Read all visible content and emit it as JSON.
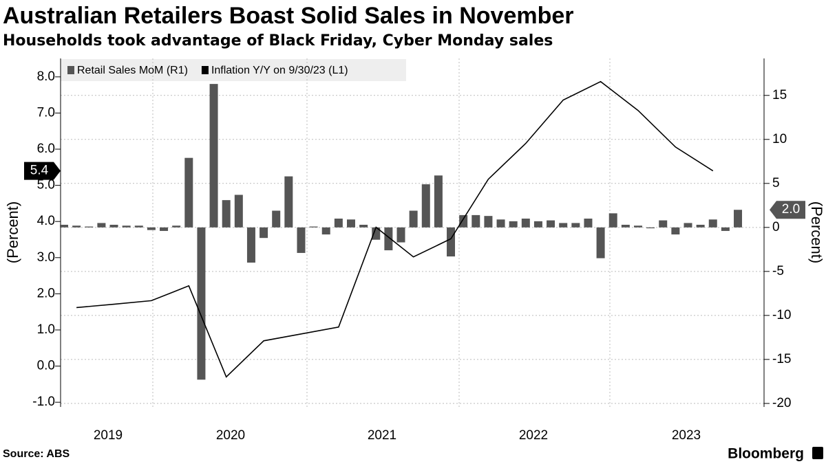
{
  "chart_data": {
    "type": "bar-line",
    "title": "Australian Retailers Boast Solid Sales in November",
    "subtitle": "Households took advantage of Black Friday, Cyber Monday sales",
    "source": "Source: ABS",
    "brand": "Bloomberg",
    "y_label": "(Percent)",
    "y2_label": "(Percent)",
    "x_labels": [
      "2019",
      "2020",
      "2021",
      "2022",
      "2023"
    ],
    "ylim": [
      -1.13,
      8.51
    ],
    "yticks": [
      {
        "value": -1,
        "label": "-1.0"
      },
      {
        "value": 0,
        "label": "0.0"
      },
      {
        "value": 1,
        "label": "1.0"
      },
      {
        "value": 2,
        "label": "2.0"
      },
      {
        "value": 3,
        "label": "3.0"
      },
      {
        "value": 4,
        "label": "4.0"
      },
      {
        "value": 5,
        "label": "5.0"
      },
      {
        "value": 6,
        "label": "6.0"
      },
      {
        "value": 7,
        "label": "7.0"
      },
      {
        "value": 8,
        "label": "8.0"
      }
    ],
    "y2lim": [
      -20.4,
      19.2
    ],
    "y2ticks": [
      -20,
      -15,
      -10,
      -5,
      0,
      5,
      10,
      15
    ],
    "grid": true,
    "legend": "top-left",
    "series": [
      {
        "name": "Retail Sales MoM (R1)",
        "color": "#555555",
        "axis": "y2",
        "kind": "bar",
        "values": [
          0.3,
          0.2,
          0.1,
          0.5,
          0.3,
          0.2,
          0.2,
          -0.3,
          -0.4,
          0.2,
          7.9,
          -17.3,
          16.3,
          3.1,
          3.7,
          -4.0,
          -1.2,
          1.9,
          5.8,
          -2.9,
          0.1,
          -0.8,
          1.0,
          0.9,
          0.3,
          -1.4,
          -2.6,
          -1.7,
          1.9,
          4.9,
          5.9,
          -3.3,
          1.4,
          1.4,
          1.3,
          0.9,
          0.7,
          1.0,
          0.7,
          0.8,
          0.5,
          0.5,
          1.0,
          -3.5,
          1.6,
          0.3,
          0.2,
          -0.1,
          0.8,
          -0.8,
          0.5,
          0.3,
          0.9,
          -0.4,
          2.0
        ],
        "value_labels": {
          "54": "2.0"
        }
      },
      {
        "name": "Inflation Y/Y on 9/30/23 (L1)",
        "color": "#000000",
        "axis": "y",
        "kind": "line",
        "values": [
          1.62,
          1.71,
          1.81,
          2.22,
          -0.3,
          0.7,
          0.89,
          1.08,
          3.84,
          3.02,
          3.52,
          5.17,
          6.16,
          7.36,
          7.87,
          7.07,
          6.06,
          5.4
        ],
        "value_labels": {
          "17": "5.4"
        }
      }
    ]
  }
}
